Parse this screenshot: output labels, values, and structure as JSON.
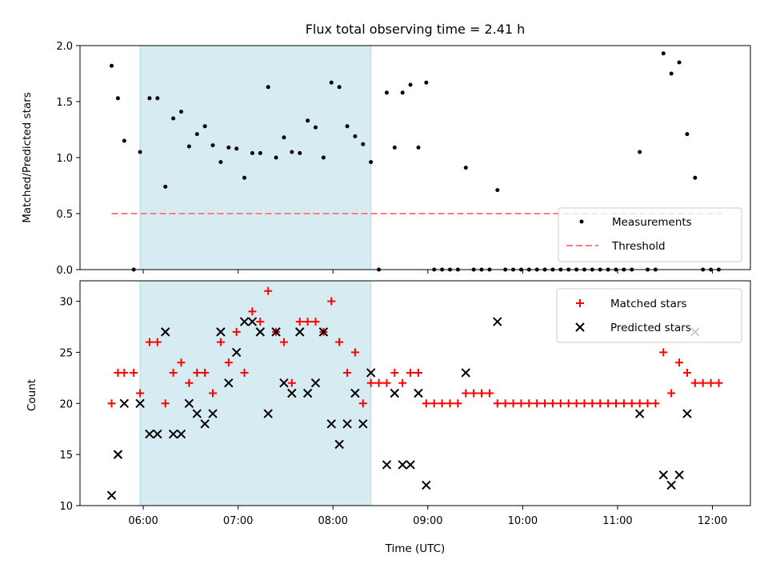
{
  "chart_data": {
    "title": "Flux total observing time = 2.41 h",
    "xlabel": "Time (UTC)",
    "xlim": [
      "05:20",
      "12:24"
    ],
    "x_ticks": [
      "06:00",
      "07:00",
      "08:00",
      "09:00",
      "10:00",
      "11:00",
      "12:00"
    ],
    "shaded_span": {
      "start": "05:58",
      "end": "08:24",
      "color": "#add8e6"
    },
    "panels": [
      {
        "type": "scatter",
        "ylabel": "Matched/Predicted stars",
        "ylim": [
          0,
          2.0
        ],
        "y_ticks": [
          "0.0",
          "0.5",
          "1.0",
          "1.5",
          "2.0"
        ],
        "legend": "bottom-right",
        "threshold": {
          "name": "Threshold",
          "value": 0.5,
          "x_start": "05:40",
          "x_end": "12:06",
          "color": "#ff7f7f"
        },
        "series": [
          {
            "name": "Measurements",
            "color": "#000000",
            "marker": "dot",
            "points": [
              [
                "05:40",
                1.82
              ],
              [
                "05:44",
                1.53
              ],
              [
                "05:48",
                1.15
              ],
              [
                "05:54",
                0.0
              ],
              [
                "05:58",
                1.05
              ],
              [
                "06:04",
                1.53
              ],
              [
                "06:09",
                1.53
              ],
              [
                "06:14",
                0.74
              ],
              [
                "06:19",
                1.35
              ],
              [
                "06:24",
                1.41
              ],
              [
                "06:29",
                1.1
              ],
              [
                "06:34",
                1.21
              ],
              [
                "06:39",
                1.28
              ],
              [
                "06:44",
                1.11
              ],
              [
                "06:49",
                0.96
              ],
              [
                "06:54",
                1.09
              ],
              [
                "06:59",
                1.08
              ],
              [
                "07:04",
                0.82
              ],
              [
                "07:09",
                1.04
              ],
              [
                "07:14",
                1.04
              ],
              [
                "07:19",
                1.63
              ],
              [
                "07:24",
                1.0
              ],
              [
                "07:29",
                1.18
              ],
              [
                "07:34",
                1.05
              ],
              [
                "07:39",
                1.04
              ],
              [
                "07:44",
                1.33
              ],
              [
                "07:49",
                1.27
              ],
              [
                "07:54",
                1.0
              ],
              [
                "07:59",
                1.67
              ],
              [
                "08:04",
                1.63
              ],
              [
                "08:09",
                1.28
              ],
              [
                "08:14",
                1.19
              ],
              [
                "08:19",
                1.12
              ],
              [
                "08:24",
                0.96
              ],
              [
                "08:29",
                0.0
              ],
              [
                "08:34",
                1.58
              ],
              [
                "08:39",
                1.09
              ],
              [
                "08:44",
                1.58
              ],
              [
                "08:49",
                1.65
              ],
              [
                "08:54",
                1.09
              ],
              [
                "08:59",
                1.67
              ],
              [
                "09:04",
                0.0
              ],
              [
                "09:09",
                0.0
              ],
              [
                "09:14",
                0.0
              ],
              [
                "09:19",
                0.0
              ],
              [
                "09:24",
                0.91
              ],
              [
                "09:29",
                0.0
              ],
              [
                "09:34",
                0.0
              ],
              [
                "09:39",
                0.0
              ],
              [
                "09:44",
                0.71
              ],
              [
                "09:49",
                0.0
              ],
              [
                "09:54",
                0.0
              ],
              [
                "09:59",
                0.0
              ],
              [
                "10:04",
                0.0
              ],
              [
                "10:09",
                0.0
              ],
              [
                "10:14",
                0.0
              ],
              [
                "10:19",
                0.0
              ],
              [
                "10:24",
                0.0
              ],
              [
                "10:29",
                0.0
              ],
              [
                "10:34",
                0.0
              ],
              [
                "10:39",
                0.0
              ],
              [
                "10:44",
                0.0
              ],
              [
                "10:49",
                0.0
              ],
              [
                "10:54",
                0.0
              ],
              [
                "10:59",
                0.0
              ],
              [
                "11:04",
                0.0
              ],
              [
                "11:09",
                0.0
              ],
              [
                "11:14",
                1.05
              ],
              [
                "11:19",
                0.0
              ],
              [
                "11:24",
                0.0
              ],
              [
                "11:29",
                1.93
              ],
              [
                "11:34",
                1.75
              ],
              [
                "11:39",
                1.85
              ],
              [
                "11:44",
                1.21
              ],
              [
                "11:49",
                0.82
              ],
              [
                "11:54",
                0.0
              ],
              [
                "11:59",
                0.0
              ],
              [
                "12:04",
                0.0
              ]
            ]
          }
        ]
      },
      {
        "type": "scatter",
        "ylabel": "Count",
        "ylim": [
          10,
          32
        ],
        "y_ticks": [
          "10",
          "15",
          "20",
          "25",
          "30"
        ],
        "legend": "top-right",
        "series": [
          {
            "name": "Matched stars",
            "color": "#ff0000",
            "marker": "plus",
            "points": [
              [
                "05:40",
                20
              ],
              [
                "05:44",
                23
              ],
              [
                "05:48",
                23
              ],
              [
                "05:54",
                23
              ],
              [
                "05:58",
                21
              ],
              [
                "06:04",
                26
              ],
              [
                "06:09",
                26
              ],
              [
                "06:14",
                20
              ],
              [
                "06:19",
                23
              ],
              [
                "06:24",
                24
              ],
              [
                "06:29",
                22
              ],
              [
                "06:34",
                23
              ],
              [
                "06:39",
                23
              ],
              [
                "06:44",
                21
              ],
              [
                "06:49",
                26
              ],
              [
                "06:54",
                24
              ],
              [
                "06:59",
                27
              ],
              [
                "07:04",
                23
              ],
              [
                "07:09",
                29
              ],
              [
                "07:14",
                28
              ],
              [
                "07:19",
                31
              ],
              [
                "07:24",
                27
              ],
              [
                "07:29",
                26
              ],
              [
                "07:34",
                22
              ],
              [
                "07:39",
                28
              ],
              [
                "07:44",
                28
              ],
              [
                "07:49",
                28
              ],
              [
                "07:54",
                27
              ],
              [
                "07:59",
                30
              ],
              [
                "08:04",
                26
              ],
              [
                "08:09",
                23
              ],
              [
                "08:14",
                25
              ],
              [
                "08:19",
                20
              ],
              [
                "08:24",
                22
              ],
              [
                "08:29",
                22
              ],
              [
                "08:34",
                22
              ],
              [
                "08:39",
                23
              ],
              [
                "08:44",
                22
              ],
              [
                "08:49",
                23
              ],
              [
                "08:54",
                23
              ],
              [
                "08:59",
                20
              ],
              [
                "09:04",
                20
              ],
              [
                "09:09",
                20
              ],
              [
                "09:14",
                20
              ],
              [
                "09:19",
                20
              ],
              [
                "09:24",
                21
              ],
              [
                "09:29",
                21
              ],
              [
                "09:34",
                21
              ],
              [
                "09:39",
                21
              ],
              [
                "09:44",
                20
              ],
              [
                "09:49",
                20
              ],
              [
                "09:54",
                20
              ],
              [
                "09:59",
                20
              ],
              [
                "10:04",
                20
              ],
              [
                "10:09",
                20
              ],
              [
                "10:14",
                20
              ],
              [
                "10:19",
                20
              ],
              [
                "10:24",
                20
              ],
              [
                "10:29",
                20
              ],
              [
                "10:34",
                20
              ],
              [
                "10:39",
                20
              ],
              [
                "10:44",
                20
              ],
              [
                "10:49",
                20
              ],
              [
                "10:54",
                20
              ],
              [
                "10:59",
                20
              ],
              [
                "11:04",
                20
              ],
              [
                "11:09",
                20
              ],
              [
                "11:14",
                20
              ],
              [
                "11:19",
                20
              ],
              [
                "11:24",
                20
              ],
              [
                "11:29",
                25
              ],
              [
                "11:34",
                21
              ],
              [
                "11:39",
                24
              ],
              [
                "11:44",
                23
              ],
              [
                "11:49",
                22
              ],
              [
                "11:54",
                22
              ],
              [
                "11:59",
                22
              ],
              [
                "12:04",
                22
              ]
            ]
          },
          {
            "name": "Predicted stars",
            "color": "#000000",
            "marker": "x",
            "points": [
              [
                "05:40",
                11
              ],
              [
                "05:44",
                15
              ],
              [
                "05:48",
                20
              ],
              [
                "05:58",
                20
              ],
              [
                "06:04",
                17
              ],
              [
                "06:09",
                17
              ],
              [
                "06:14",
                27
              ],
              [
                "06:19",
                17
              ],
              [
                "06:24",
                17
              ],
              [
                "06:29",
                20
              ],
              [
                "06:34",
                19
              ],
              [
                "06:39",
                18
              ],
              [
                "06:44",
                19
              ],
              [
                "06:49",
                27
              ],
              [
                "06:54",
                22
              ],
              [
                "06:59",
                25
              ],
              [
                "07:04",
                28
              ],
              [
                "07:09",
                28
              ],
              [
                "07:14",
                27
              ],
              [
                "07:19",
                19
              ],
              [
                "07:24",
                27
              ],
              [
                "07:29",
                22
              ],
              [
                "07:34",
                21
              ],
              [
                "07:39",
                27
              ],
              [
                "07:44",
                21
              ],
              [
                "07:49",
                22
              ],
              [
                "07:54",
                27
              ],
              [
                "07:59",
                18
              ],
              [
                "08:04",
                16
              ],
              [
                "08:09",
                18
              ],
              [
                "08:14",
                21
              ],
              [
                "08:19",
                18
              ],
              [
                "08:24",
                23
              ],
              [
                "08:34",
                14
              ],
              [
                "08:39",
                21
              ],
              [
                "08:44",
                14
              ],
              [
                "08:49",
                14
              ],
              [
                "08:54",
                21
              ],
              [
                "08:59",
                12
              ],
              [
                "09:24",
                23
              ],
              [
                "09:44",
                28
              ],
              [
                "11:14",
                19
              ],
              [
                "11:29",
                13
              ],
              [
                "11:34",
                12
              ],
              [
                "11:39",
                13
              ],
              [
                "11:44",
                19
              ],
              [
                "11:49",
                27
              ]
            ]
          }
        ]
      }
    ]
  }
}
